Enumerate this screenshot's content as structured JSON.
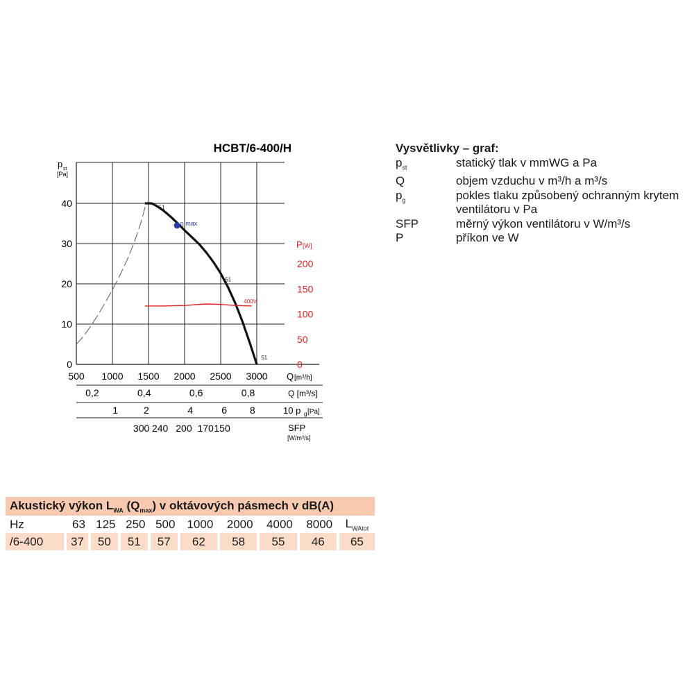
{
  "chart_data": {
    "type": "line",
    "title": "HCBT/6-400/H",
    "y_axis": {
      "label_main": "p",
      "label_sub": "st",
      "unit": "[Pa]",
      "ticks": [
        "0",
        "10",
        "20",
        "30",
        "40"
      ],
      "ylim": [
        0,
        40
      ]
    },
    "y2_axis": {
      "label_main": "P",
      "unit": "[W]",
      "ticks": [
        "0",
        "50",
        "100",
        "150",
        "200"
      ],
      "ylim": [
        0,
        200
      ],
      "color": "#e02020"
    },
    "x_axis": {
      "label": "Q",
      "unit": "[m³/h]",
      "ticks": [
        "500",
        "1000",
        "1500",
        "2000",
        "2500",
        "3000"
      ],
      "xlim": [
        500,
        3000
      ]
    },
    "grid": true,
    "series": [
      {
        "name": "pst",
        "color": "#111111",
        "x": [
          1450,
          1540,
          1600,
          1700,
          1800,
          1900,
          2000,
          2100,
          2200,
          2300,
          2400,
          2500,
          2600,
          2700,
          2800,
          2900,
          3000
        ],
        "y": [
          40,
          40,
          39.5,
          38.3,
          36.8,
          35.1,
          33.3,
          31.6,
          29.9,
          27.8,
          25.4,
          22.6,
          19.2,
          15.3,
          10.7,
          5.5,
          0
        ]
      },
      {
        "name": "pg",
        "style": "dashed",
        "color": "#666666",
        "x": [
          500,
          600,
          700,
          800,
          900,
          1000,
          1100,
          1200,
          1300,
          1400,
          1460
        ],
        "y": [
          5,
          7,
          9.5,
          12.3,
          15.3,
          18.5,
          22,
          25.8,
          30.2,
          35.5,
          39.5
        ]
      },
      {
        "name": "400V",
        "axis": "y2",
        "color": "#e02020",
        "x": [
          1450,
          1700,
          2000,
          2300,
          2500,
          2700,
          2930
        ],
        "y": [
          116,
          116,
          117,
          120,
          119,
          117,
          116
        ]
      }
    ],
    "annotations": [
      {
        "text": "η max",
        "x": 1940,
        "y": 34.5,
        "color": "#2b3ba8"
      },
      {
        "text": "51",
        "x": 1640,
        "y": 38.5
      },
      {
        "text": "51",
        "x": 2560,
        "y": 20.6
      },
      {
        "text": "51",
        "x": 3060,
        "y": 1.2
      },
      {
        "text": "400V",
        "x": 2820,
        "y": 15.2,
        "color": "#e02020"
      }
    ],
    "secondary_scales": [
      {
        "label": "Q [m³/s]",
        "ticks": [
          {
            "label": "0,2",
            "q": 720
          },
          {
            "label": "0,4",
            "q": 1440
          },
          {
            "label": "0,6",
            "q": 2160
          },
          {
            "label": "0,8",
            "q": 2880
          }
        ]
      },
      {
        "label_main": "10 p",
        "label_sub": "g",
        "label_unit": "[Pa]",
        "ticks": [
          {
            "label": "1",
            "q": 1040
          },
          {
            "label": "2",
            "q": 1470
          },
          {
            "label": "4",
            "q": 2080
          },
          {
            "label": "6",
            "q": 2550
          },
          {
            "label": "8",
            "q": 2940
          }
        ]
      },
      {
        "label": "SFP",
        "unit": "[W/m³/s]",
        "ticks": [
          {
            "label": "300",
            "q": 1400
          },
          {
            "label": "240",
            "q": 1660
          },
          {
            "label": "200",
            "q": 1990
          },
          {
            "label": "170",
            "q": 2290
          },
          {
            "label": "150",
            "q": 2520
          }
        ]
      }
    ]
  },
  "legend": {
    "title": "Vysvětlivky – graf:",
    "items": [
      {
        "sym": "p",
        "sub": "st",
        "desc": "statický tlak v mmWG a Pa"
      },
      {
        "sym": "Q",
        "sub": "",
        "desc": "objem vzduchu v m³/h a m³/s"
      },
      {
        "sym": "p",
        "sub": "g",
        "desc": "pokles tlaku způsobený ochranným krytem ventilátoru v Pa"
      },
      {
        "sym": "SFP",
        "sub": "",
        "desc": "měrný výkon ventilátoru v W/m³/s"
      },
      {
        "sym": "P",
        "sub": "",
        "desc": "příkon ve W"
      }
    ]
  },
  "acoustic": {
    "title_a": "Akustický výkon L",
    "title_sub1": "WA",
    "title_b": " (Q",
    "title_sub2": "max",
    "title_c": ") v oktávových pásmech v dB(A)",
    "hz_label": "Hz",
    "bands": [
      "63",
      "125",
      "250",
      "500",
      "1000",
      "2000",
      "4000",
      "8000"
    ],
    "total_main": "L",
    "total_sub": "WAtot",
    "row_label": "/6-400",
    "values": [
      "37",
      "50",
      "51",
      "57",
      "62",
      "58",
      "55",
      "46",
      "65"
    ]
  }
}
